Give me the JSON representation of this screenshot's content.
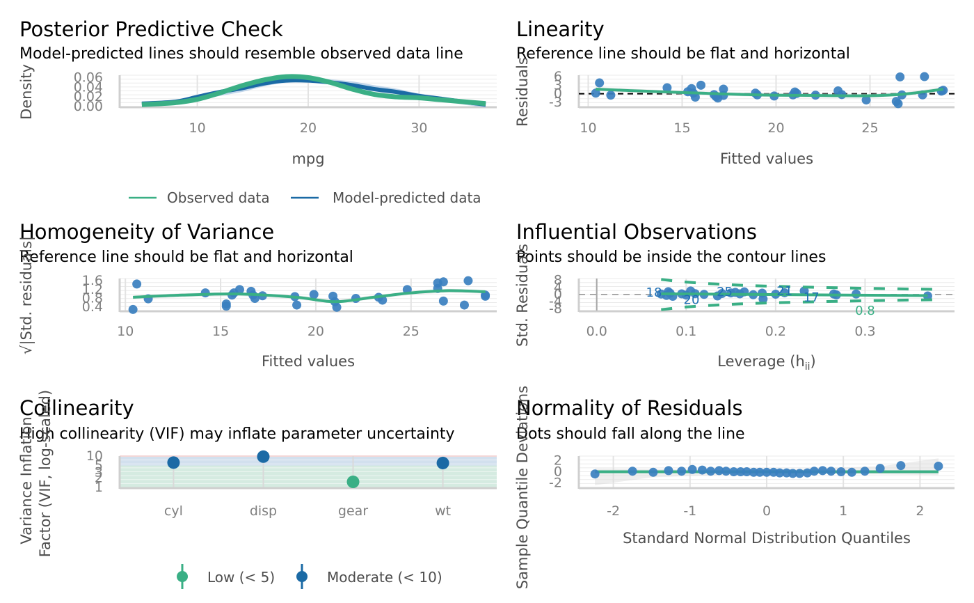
{
  "colors": {
    "observed": "#3aaf85",
    "predicted": "#1b6aa5",
    "point": "#3a7fbf",
    "smooth": "#3aaf85",
    "reference": "#000000",
    "grid": "#ebebeb",
    "ci_band": "#d9d9d9",
    "vif_low_band": "#d5ebe1",
    "vif_moderate_band": "#d2e0ee",
    "vif_high_band": "#f0c8c8"
  },
  "chart_data": [
    {
      "id": "ppc",
      "type": "line",
      "title": "Posterior Predictive Check",
      "subtitle": "Model-predicted lines should resemble observed data line",
      "xlabel": "mpg",
      "ylabel": "Density",
      "xlim": [
        3,
        37
      ],
      "ylim": [
        0,
        0.065
      ],
      "xticks": [
        10,
        20,
        30
      ],
      "yticks": [
        0.0,
        0.02,
        0.04,
        0.06
      ],
      "ytick_labels": [
        "0.00",
        "0.02",
        "0.04",
        "0.06"
      ],
      "grid": true,
      "legend": {
        "position": "bottom",
        "entries": [
          "Observed data",
          "Model-predicted data"
        ]
      },
      "series": [
        {
          "name": "Observed data",
          "x": [
            5,
            8,
            10,
            12,
            14,
            16,
            18,
            20,
            22,
            24,
            26,
            28,
            30,
            32,
            34,
            36
          ],
          "y": [
            0.004,
            0.008,
            0.015,
            0.028,
            0.043,
            0.055,
            0.062,
            0.06,
            0.05,
            0.036,
            0.025,
            0.02,
            0.018,
            0.014,
            0.01,
            0.006
          ]
        },
        {
          "name": "Model-predicted data",
          "x": [
            5,
            8,
            10,
            12,
            14,
            16,
            18,
            20,
            22,
            24,
            26,
            28,
            30,
            32,
            34,
            36
          ],
          "y": [
            0.006,
            0.01,
            0.02,
            0.03,
            0.038,
            0.048,
            0.054,
            0.054,
            0.05,
            0.044,
            0.036,
            0.03,
            0.022,
            0.016,
            0.01,
            0.004
          ]
        }
      ]
    },
    {
      "id": "linearity",
      "type": "scatter",
      "title": "Linearity",
      "subtitle": "Reference line should be flat and horizontal",
      "xlabel": "Fitted values",
      "ylabel": "Residuals",
      "xlim": [
        9.5,
        29.5
      ],
      "ylim": [
        -4.5,
        6.5
      ],
      "xticks": [
        10,
        15,
        20,
        25
      ],
      "yticks": [
        -3,
        0,
        3,
        6
      ],
      "grid": true,
      "reference_line": 0,
      "points": [
        [
          10.4,
          0.2
        ],
        [
          10.6,
          3.8
        ],
        [
          11.2,
          -0.5
        ],
        [
          14.2,
          2.1
        ],
        [
          15.3,
          0.7
        ],
        [
          15.5,
          1.8
        ],
        [
          15.7,
          -1.2
        ],
        [
          15.6,
          0.2
        ],
        [
          16.0,
          3.0
        ],
        [
          16.7,
          -0.3
        ],
        [
          16.8,
          -1.0
        ],
        [
          16.9,
          -1.5
        ],
        [
          17.2,
          -0.6
        ],
        [
          17.2,
          1.6
        ],
        [
          18.9,
          0.2
        ],
        [
          19.0,
          -0.4
        ],
        [
          19.9,
          -0.8
        ],
        [
          20.9,
          -0.4
        ],
        [
          21.0,
          0.6
        ],
        [
          21.1,
          0.1
        ],
        [
          22.1,
          -0.5
        ],
        [
          23.3,
          1.0
        ],
        [
          23.5,
          -0.3
        ],
        [
          24.8,
          -2.2
        ],
        [
          26.4,
          -2.7
        ],
        [
          26.5,
          -3.5
        ],
        [
          26.6,
          5.9
        ],
        [
          26.7,
          -0.4
        ],
        [
          27.9,
          6.0
        ],
        [
          27.8,
          -0.4
        ],
        [
          28.9,
          1.2
        ],
        [
          28.8,
          0.9
        ]
      ],
      "smooth": {
        "x": [
          10.4,
          13,
          16,
          19,
          22,
          25,
          27,
          28.9
        ],
        "y": [
          1.6,
          0.9,
          0.2,
          -0.4,
          -0.6,
          -0.7,
          0.0,
          1.6
        ]
      }
    },
    {
      "id": "homogeneity",
      "type": "scatter",
      "title": "Homogeneity of Variance",
      "subtitle": "Reference line should be flat and horizontal",
      "xlabel": "Fitted values",
      "ylabel": "√|Std. residuals|",
      "xlim": [
        9.7,
        29.5
      ],
      "ylim": [
        0.25,
        1.7
      ],
      "xticks": [
        10,
        15,
        20,
        25
      ],
      "yticks": [
        0.4,
        0.8,
        1.2,
        1.6
      ],
      "ytick_labels": [
        "0.4",
        "0.8",
        "1.2",
        "1.6"
      ],
      "grid": true,
      "points": [
        [
          10.4,
          0.3
        ],
        [
          10.6,
          1.45
        ],
        [
          11.2,
          0.78
        ],
        [
          14.2,
          1.05
        ],
        [
          15.3,
          0.55
        ],
        [
          15.3,
          0.45
        ],
        [
          15.6,
          0.95
        ],
        [
          15.7,
          1.05
        ],
        [
          16.0,
          1.2
        ],
        [
          16.6,
          1.12
        ],
        [
          16.8,
          0.8
        ],
        [
          16.7,
          0.95
        ],
        [
          17.2,
          0.92
        ],
        [
          18.9,
          0.88
        ],
        [
          19.0,
          0.5
        ],
        [
          19.9,
          0.98
        ],
        [
          20.9,
          0.9
        ],
        [
          21.0,
          0.65
        ],
        [
          21.1,
          0.4
        ],
        [
          22.1,
          0.8
        ],
        [
          23.3,
          0.85
        ],
        [
          23.5,
          0.72
        ],
        [
          24.8,
          1.2
        ],
        [
          26.4,
          1.25
        ],
        [
          26.4,
          1.5
        ],
        [
          26.7,
          1.55
        ],
        [
          26.7,
          0.68
        ],
        [
          27.8,
          0.5
        ],
        [
          28.0,
          1.6
        ],
        [
          28.9,
          0.95
        ],
        [
          28.9,
          0.9
        ]
      ],
      "smooth": {
        "x": [
          10.4,
          13,
          16,
          19,
          21,
          23,
          25,
          27,
          28.9
        ],
        "y": [
          0.85,
          0.95,
          1.0,
          0.85,
          0.65,
          0.85,
          1.05,
          1.15,
          1.1
        ]
      }
    },
    {
      "id": "influential",
      "type": "scatter",
      "title": "Influential Observations",
      "subtitle": "Points should be inside the contour lines",
      "xlabel": "Leverage (h",
      "xlabel_sub": "ii",
      "xlabel_end": ")",
      "ylabel": "Std. Residuals",
      "xlim": [
        -0.02,
        0.4
      ],
      "ylim": [
        -9,
        9
      ],
      "xticks": [
        0.0,
        0.1,
        0.2,
        0.3
      ],
      "xtick_labels": [
        "0.0",
        "0.1",
        "0.2",
        "0.3"
      ],
      "yticks": [
        -8,
        -4,
        0,
        4,
        8
      ],
      "grid": true,
      "reference_line": 0,
      "points": [
        [
          0.072,
          0.3
        ],
        [
          0.078,
          -0.5
        ],
        [
          0.08,
          1.6
        ],
        [
          0.082,
          0.8
        ],
        [
          0.085,
          -1.0
        ],
        [
          0.095,
          0.4
        ],
        [
          0.1,
          -0.3
        ],
        [
          0.105,
          2.0
        ],
        [
          0.11,
          0.5
        ],
        [
          0.12,
          0.1
        ],
        [
          0.135,
          -0.8
        ],
        [
          0.14,
          0.6
        ],
        [
          0.15,
          0.9
        ],
        [
          0.155,
          1.2
        ],
        [
          0.16,
          0.4
        ],
        [
          0.165,
          1.5
        ],
        [
          0.175,
          -0.1
        ],
        [
          0.185,
          0.8
        ],
        [
          0.186,
          -2.5
        ],
        [
          0.2,
          0.2
        ],
        [
          0.21,
          1.0
        ],
        [
          0.232,
          2.0
        ],
        [
          0.265,
          0.3
        ],
        [
          0.268,
          -0.2
        ],
        [
          0.29,
          0.3
        ],
        [
          0.37,
          -0.8
        ]
      ],
      "point_labels": [
        {
          "text": "18",
          "x": 0.064,
          "y": 1.2
        },
        {
          "text": "20",
          "x": 0.106,
          "y": -3.0
        },
        {
          "text": "25",
          "x": 0.143,
          "y": 1.5
        },
        {
          "text": "21",
          "x": 0.21,
          "y": 2.0
        },
        {
          "text": "17",
          "x": 0.24,
          "y": -1.5
        }
      ],
      "contour_label": "0.8",
      "fit": {
        "x": [
          0.072,
          0.37
        ],
        "y": [
          0.4,
          -0.6
        ]
      },
      "contours": {
        "upper": {
          "x": [
            0.072,
            0.1,
            0.15,
            0.2,
            0.25,
            0.3,
            0.35,
            0.38
          ],
          "y": [
            8.8,
            7.0,
            5.5,
            4.6,
            4.0,
            3.5,
            3.1,
            2.9
          ]
        },
        "lower": {
          "x": [
            0.072,
            0.1,
            0.15,
            0.2,
            0.25,
            0.3,
            0.35,
            0.38
          ],
          "y": [
            -8.8,
            -7.0,
            -5.5,
            -4.6,
            -4.0,
            -3.5,
            -3.1,
            -2.9
          ]
        }
      }
    },
    {
      "id": "collinearity",
      "type": "scatter",
      "title": "Collinearity",
      "subtitle": "High collinearity (VIF) may inflate parameter uncertainty",
      "xlabel": "",
      "ylabel": "Variance Inflation\nFactor (VIF, log-scaled)",
      "ylabel_lines": [
        "Variance Inflation",
        "Factor (VIF, log-scaled)"
      ],
      "yscale": "log",
      "ylim": [
        1,
        10
      ],
      "yticks": [
        1,
        2,
        3,
        5,
        10
      ],
      "categories": [
        "cyl",
        "disp",
        "gear",
        "wt"
      ],
      "values": [
        6.2,
        9.6,
        1.3,
        6.0
      ],
      "groups": [
        "Moderate (< 10)",
        "Moderate (< 10)",
        "Low (< 5)",
        "Moderate (< 10)"
      ],
      "legend": {
        "position": "bottom",
        "entries": [
          "Low (< 5)",
          "Moderate (< 10)"
        ]
      },
      "grid": true
    },
    {
      "id": "normality",
      "type": "scatter",
      "title": "Normality of Residuals",
      "subtitle": "Dots should fall along the line",
      "xlabel": "Standard Normal Distribution Quantiles",
      "ylabel": "Sample Quantile Deviations",
      "xlim": [
        -2.45,
        2.45
      ],
      "ylim": [
        -2.8,
        2.8
      ],
      "xticks": [
        -2,
        -1,
        0,
        1,
        2
      ],
      "yticks": [
        -2,
        0,
        2
      ],
      "grid": true,
      "reference_line": 0,
      "points": [
        [
          -2.24,
          -0.4
        ],
        [
          -1.75,
          0.1
        ],
        [
          -1.48,
          -0.1
        ],
        [
          -1.28,
          0.2
        ],
        [
          -1.11,
          0.1
        ],
        [
          -0.97,
          0.4
        ],
        [
          -0.84,
          0.3
        ],
        [
          -0.73,
          0.1
        ],
        [
          -0.62,
          0.2
        ],
        [
          -0.53,
          0.1
        ],
        [
          -0.43,
          0.0
        ],
        [
          -0.34,
          0.0
        ],
        [
          -0.26,
          0.0
        ],
        [
          -0.17,
          -0.1
        ],
        [
          -0.09,
          -0.1
        ],
        [
          0.0,
          -0.1
        ],
        [
          0.09,
          -0.1
        ],
        [
          0.17,
          -0.2
        ],
        [
          0.26,
          -0.2
        ],
        [
          0.34,
          -0.3
        ],
        [
          0.43,
          -0.3
        ],
        [
          0.53,
          -0.2
        ],
        [
          0.62,
          0.1
        ],
        [
          0.73,
          0.2
        ],
        [
          0.84,
          0.1
        ],
        [
          0.97,
          0.0
        ],
        [
          1.11,
          -0.1
        ],
        [
          1.28,
          0.1
        ],
        [
          1.48,
          0.6
        ],
        [
          1.75,
          1.1
        ],
        [
          2.24,
          1.0
        ]
      ],
      "band": {
        "x": [
          -2.24,
          -1.5,
          0,
          1.5,
          2.24
        ],
        "upper": [
          0.6,
          0.5,
          0.3,
          1.0,
          2.4
        ],
        "lower": [
          -2.4,
          -1.0,
          -0.3,
          -0.5,
          -0.6
        ]
      }
    }
  ]
}
